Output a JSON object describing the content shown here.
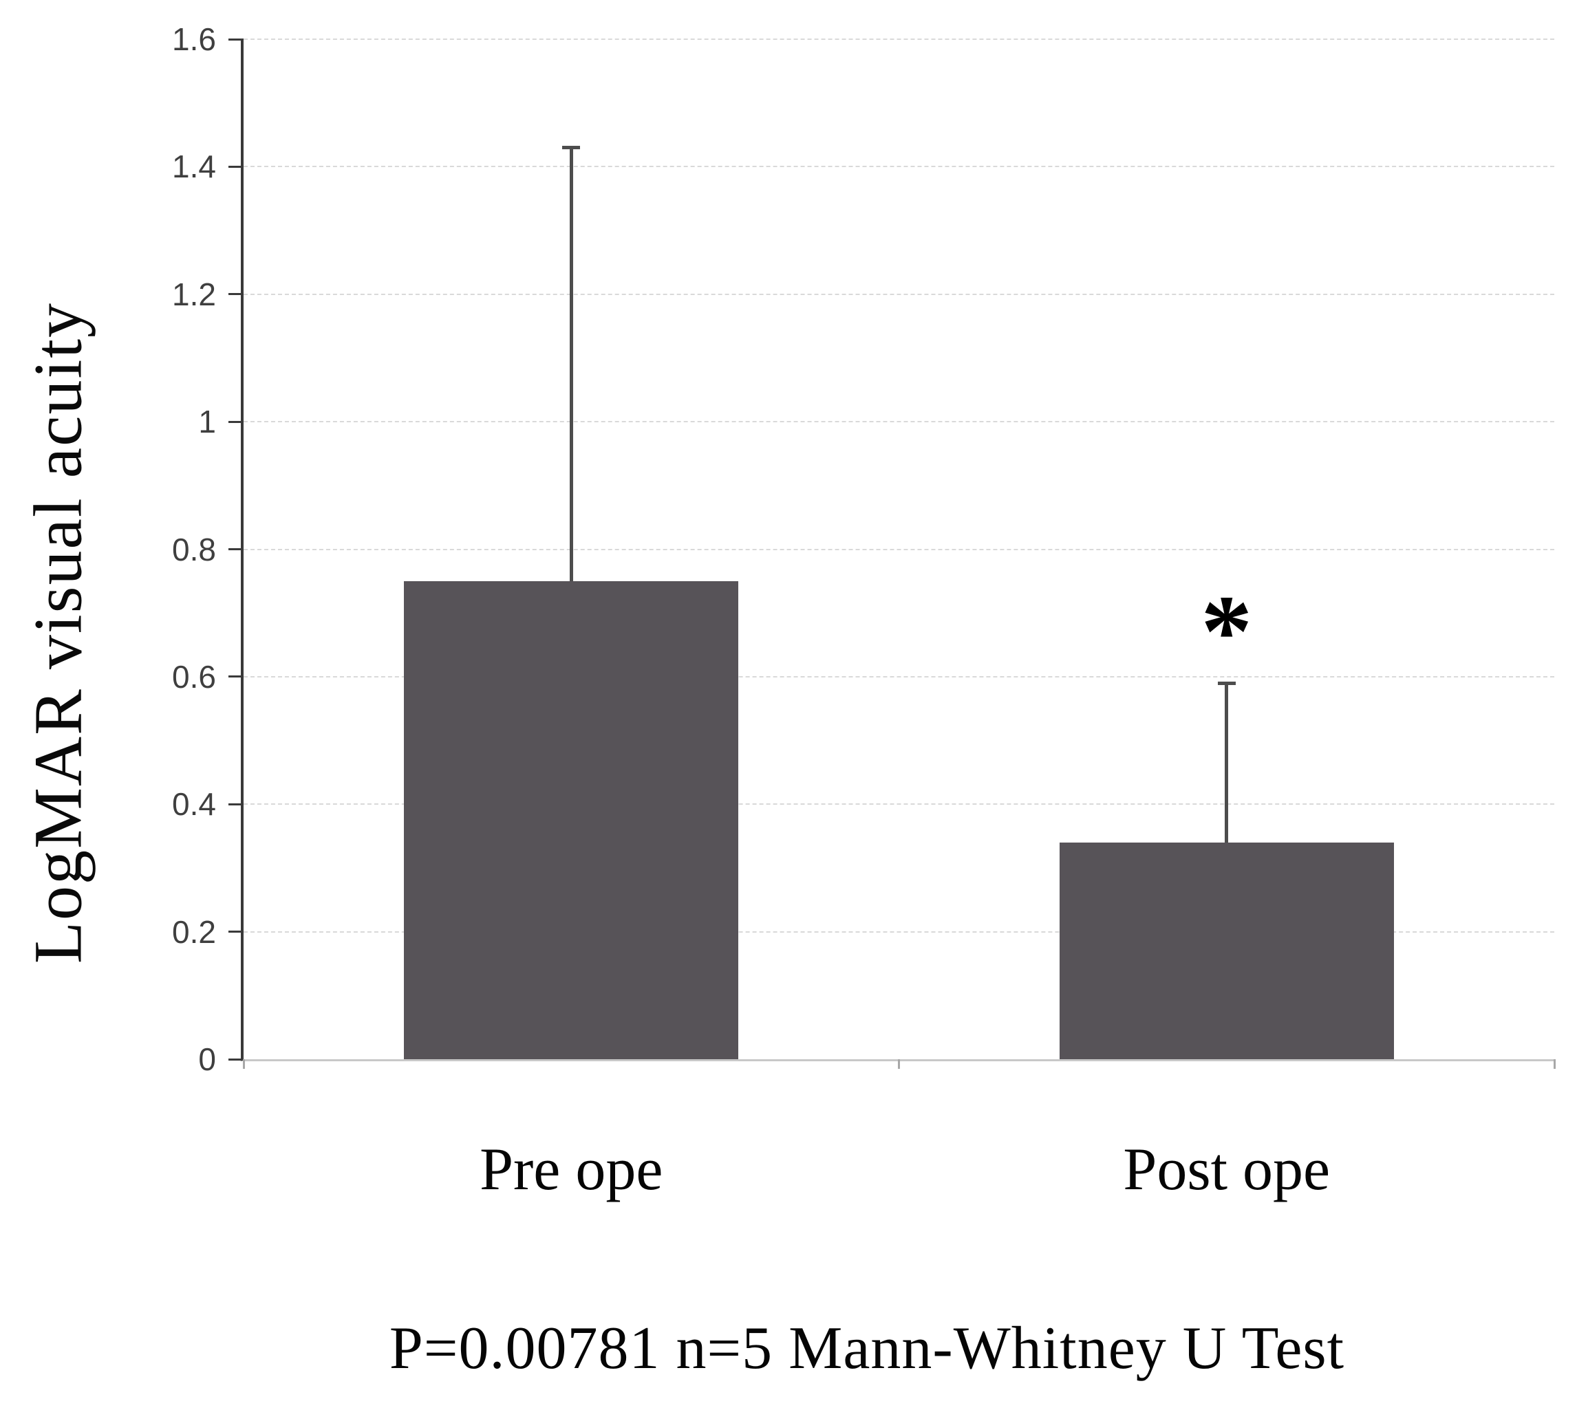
{
  "chart_data": {
    "type": "bar",
    "title": "",
    "ylabel": "LogMAR visual acuity",
    "xlabel": "",
    "categories": [
      "Pre ope",
      "Post ope"
    ],
    "values": [
      0.75,
      0.34
    ],
    "errors_upper": [
      0.68,
      0.25
    ],
    "error_bar_tops": [
      1.43,
      0.59
    ],
    "ylim": [
      0,
      1.6
    ],
    "yticks": [
      {
        "value": 0,
        "label": "0"
      },
      {
        "value": 0.2,
        "label": "0.2"
      },
      {
        "value": 0.4,
        "label": "0.4"
      },
      {
        "value": 0.6,
        "label": "0.6"
      },
      {
        "value": 0.8,
        "label": "0.8"
      },
      {
        "value": 1,
        "label": "1"
      },
      {
        "value": 1.2,
        "label": "1.2"
      },
      {
        "value": 1.4,
        "label": "1.4"
      },
      {
        "value": 1.6,
        "label": "1.6"
      }
    ],
    "grid": true,
    "legend_position": "none",
    "bar_color": "#575358",
    "annotations": [
      {
        "text": "*",
        "category_index": 1
      }
    ],
    "caption": "P=0.00781 n=5 Mann-Whitney U Test"
  }
}
